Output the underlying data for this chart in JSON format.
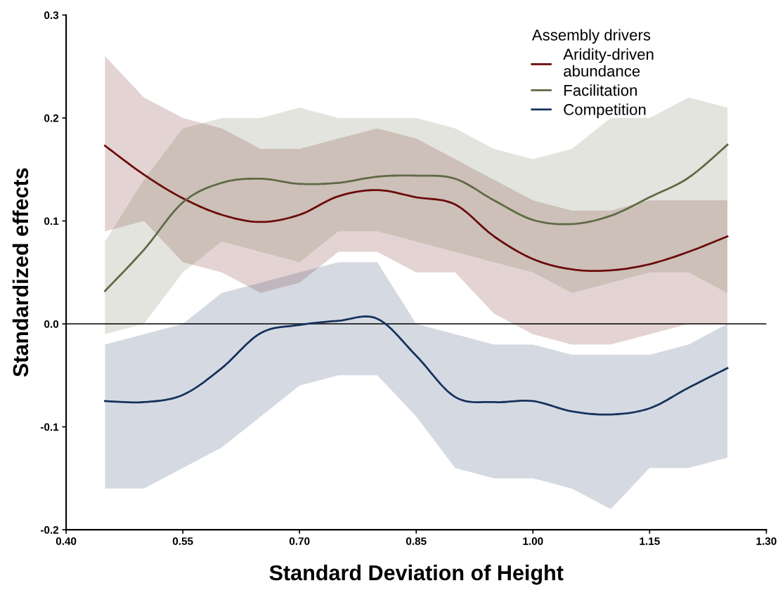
{
  "chart_data": {
    "type": "line",
    "xlabel": "Standard Deviation of Height",
    "ylabel": "Standardized effects",
    "legend_title": "Assembly drivers",
    "x": [
      0.45,
      0.5,
      0.55,
      0.6,
      0.65,
      0.7,
      0.75,
      0.8,
      0.85,
      0.9,
      0.95,
      1.0,
      1.05,
      1.1,
      1.15,
      1.2,
      1.25
    ],
    "series": [
      {
        "name": "Aridity-driven\nabundance",
        "color": "#6b0a0a",
        "values": [
          0.173,
          0.145,
          0.122,
          0.106,
          0.099,
          0.106,
          0.124,
          0.13,
          0.123,
          0.116,
          0.085,
          0.063,
          0.053,
          0.052,
          0.058,
          0.07,
          0.085
        ],
        "lower": [
          0.09,
          0.1,
          0.06,
          0.05,
          0.03,
          0.04,
          0.07,
          0.07,
          0.05,
          0.05,
          0.01,
          -0.01,
          -0.02,
          -0.02,
          -0.01,
          0.0,
          0.0
        ],
        "upper": [
          0.26,
          0.22,
          0.2,
          0.19,
          0.17,
          0.17,
          0.18,
          0.19,
          0.18,
          0.16,
          0.14,
          0.12,
          0.11,
          0.11,
          0.12,
          0.12,
          0.12
        ]
      },
      {
        "name": "Facilitation",
        "color": "#5f6a45",
        "values": [
          0.032,
          0.072,
          0.118,
          0.137,
          0.141,
          0.136,
          0.137,
          0.143,
          0.144,
          0.141,
          0.12,
          0.101,
          0.097,
          0.105,
          0.123,
          0.142,
          0.174
        ],
        "lower": [
          -0.01,
          0.0,
          0.05,
          0.08,
          0.07,
          0.06,
          0.09,
          0.09,
          0.08,
          0.07,
          0.06,
          0.05,
          0.03,
          0.04,
          0.05,
          0.05,
          0.03
        ],
        "upper": [
          0.08,
          0.14,
          0.19,
          0.2,
          0.2,
          0.21,
          0.2,
          0.2,
          0.2,
          0.19,
          0.17,
          0.16,
          0.17,
          0.2,
          0.2,
          0.22,
          0.21
        ]
      },
      {
        "name": "Competition",
        "color": "#16325c",
        "values": [
          -0.075,
          -0.076,
          -0.069,
          -0.043,
          -0.009,
          -0.001,
          0.003,
          0.005,
          -0.031,
          -0.071,
          -0.076,
          -0.075,
          -0.085,
          -0.088,
          -0.082,
          -0.062,
          -0.043
        ],
        "lower": [
          -0.16,
          -0.16,
          -0.14,
          -0.12,
          -0.09,
          -0.06,
          -0.05,
          -0.05,
          -0.09,
          -0.14,
          -0.15,
          -0.15,
          -0.16,
          -0.18,
          -0.14,
          -0.14,
          -0.13
        ],
        "upper": [
          -0.02,
          -0.01,
          0.0,
          0.03,
          0.04,
          0.05,
          0.06,
          0.06,
          0.0,
          -0.01,
          -0.02,
          -0.02,
          -0.03,
          -0.03,
          -0.03,
          -0.02,
          0.0
        ]
      }
    ],
    "xlim": [
      0.4,
      1.3
    ],
    "xticks": [
      {
        "value": 0.4,
        "label": "0.40"
      },
      {
        "value": 0.55,
        "label": "0.55"
      },
      {
        "value": 0.7,
        "label": "0.70"
      },
      {
        "value": 0.85,
        "label": "0.85"
      },
      {
        "value": 1.0,
        "label": "1.00"
      },
      {
        "value": 1.15,
        "label": "1.15"
      },
      {
        "value": 1.3,
        "label": "1.30"
      }
    ],
    "ylim": [
      -0.2,
      0.3
    ],
    "yticks": [
      -0.2,
      -0.1,
      {
        "value": 0.0,
        "label": "0.0"
      },
      0.1,
      0.2,
      0.3
    ],
    "ref_lines": [
      {
        "axis": "y",
        "value": 0.0,
        "color": "#000000"
      }
    ],
    "legend": "top right",
    "grid": false,
    "marker": "none",
    "line_style": "solid"
  }
}
